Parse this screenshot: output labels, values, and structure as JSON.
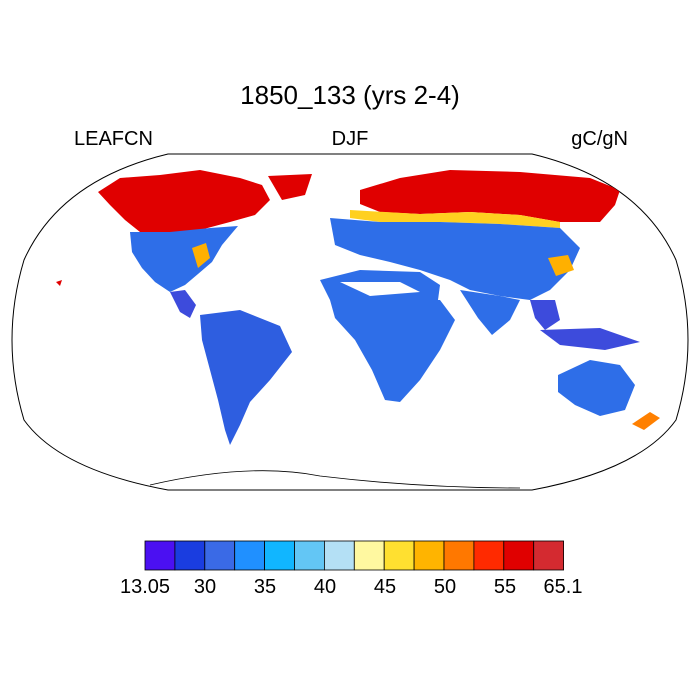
{
  "title": "1850_133 (yrs 2-4)",
  "left_label": "LEAFCN",
  "center_label": "DJF",
  "right_label": "gC/gN",
  "colors": {
    "red": "#e00000",
    "blue": "#3d4bdc",
    "light_blue": "#2e8cf0",
    "coastline": "#000000",
    "land_fill": "#ffffff"
  },
  "colorbar": {
    "colors": [
      "#4b10f2",
      "#1a3de0",
      "#3a6ae6",
      "#2090ff",
      "#11b6ff",
      "#63c6f5",
      "#b4e0f5",
      "#fff8a0",
      "#ffe030",
      "#ffb400",
      "#ff7800",
      "#ff2a00",
      "#e00000",
      "#d42a30"
    ],
    "tick_labels": [
      "13.05",
      "30",
      "35",
      "40",
      "45",
      "50",
      "55",
      "65.1"
    ]
  }
}
